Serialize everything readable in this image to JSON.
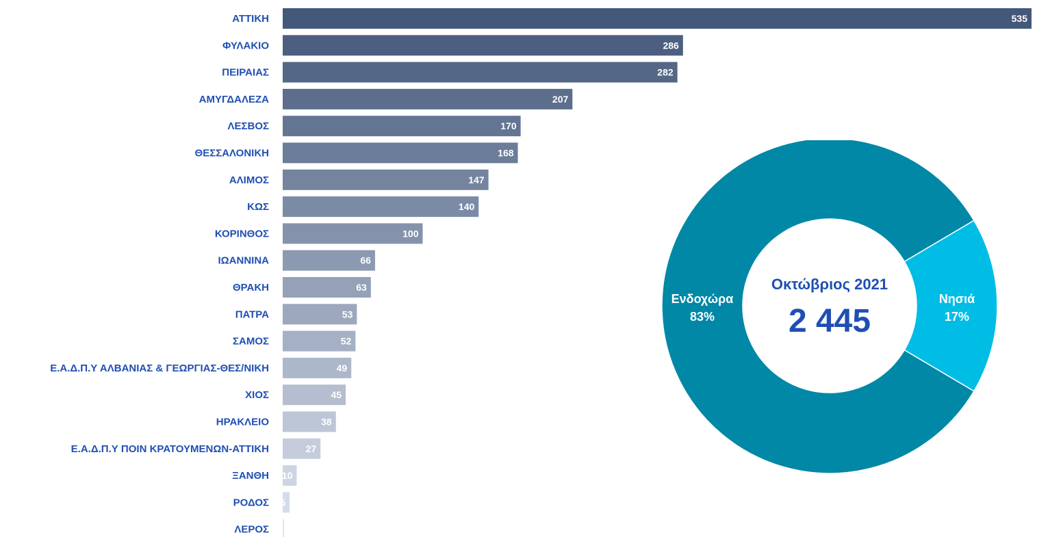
{
  "chart_data": [
    {
      "type": "bar",
      "orientation": "horizontal",
      "categories": [
        "ΑΤΤΙΚΗ",
        "ΦΥΛΑΚΙΟ",
        "ΠΕΙΡΑΙΑΣ",
        "ΑΜΥΓΔΑΛΕΖΑ",
        "ΛΕΣΒΟΣ",
        "ΘΕΣΣΑΛΟΝΙΚΗ",
        "ΑΛΙΜΟΣ",
        "ΚΩΣ",
        "ΚΟΡΙΝΘΟΣ",
        "ΙΩΑΝΝΙΝΑ",
        "ΘΡΑΚΗ",
        "ΠΑΤΡΑ",
        "ΣΑΜΟΣ",
        "Ε.Α.Δ.Π.Υ ΑΛΒΑΝΙΑΣ & ΓΕΩΡΓΙΑΣ-ΘΕΣ/ΝΙΚΗ",
        "ΧΙΟΣ",
        "ΗΡΑΚΛΕΙΟ",
        "Ε.Α.Δ.Π.Υ ΠΟΙΝ ΚΡΑΤΟΥΜΕΝΩΝ-ΑΤΤΙΚΗ",
        "ΞΑΝΘΗ",
        "ΡΟΔΟΣ",
        "ΛΕΡΟΣ"
      ],
      "values": [
        535,
        286,
        282,
        207,
        170,
        168,
        147,
        140,
        100,
        66,
        63,
        53,
        52,
        49,
        45,
        38,
        27,
        10,
        5,
        1
      ],
      "value_labels": [
        "535",
        "286",
        "282",
        "207",
        "170",
        "168",
        "147",
        "140",
        "100",
        "66",
        "63",
        "53",
        "52",
        "49",
        "45",
        "38",
        "27",
        "10",
        "5",
        ""
      ],
      "xlim": [
        0,
        535
      ],
      "grid": false,
      "colors": {
        "start": "#44587a",
        "end": "#dde3ef"
      }
    },
    {
      "type": "pie",
      "style": "donut",
      "center_title": "Οκτώβριος 2021",
      "center_value": "2 445",
      "slices": [
        {
          "name": "Ενδοχώρα",
          "percent": "83%",
          "value": 83,
          "color": "#0088a6"
        },
        {
          "name": "Νησιά",
          "percent": "17%",
          "value": 17,
          "color": "#00bde6"
        }
      ]
    }
  ]
}
